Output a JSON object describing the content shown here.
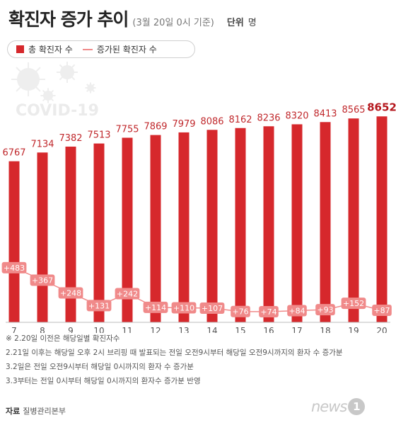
{
  "title": "확진자 증가 추이",
  "subtitle": "(3월 20일 0시 기준)",
  "unit_label": "단위",
  "unit_value": "명",
  "watermark": "COVID-19",
  "chart_data": {
    "type": "bar",
    "categories": [
      "7",
      "8",
      "9",
      "10",
      "11",
      "12",
      "13",
      "14",
      "15",
      "16",
      "17",
      "18",
      "19",
      "20"
    ],
    "series": [
      {
        "name": "총 확진자 수",
        "type": "bar",
        "values": [
          6767,
          7134,
          7382,
          7513,
          7755,
          7869,
          7979,
          8086,
          8162,
          8236,
          8320,
          8413,
          8565,
          8652
        ]
      },
      {
        "name": "증가된 확진자 수",
        "type": "line",
        "values": [
          483,
          367,
          248,
          131,
          242,
          114,
          110,
          107,
          76,
          74,
          84,
          93,
          152,
          87
        ]
      }
    ],
    "ylim": [
      0,
      9000
    ],
    "colors": {
      "bar": "#d6282c",
      "bar_label": "#c0282c",
      "last_label": "#b5171d",
      "line": "#f08a8a",
      "line_label_bg": "#f08a8a"
    }
  },
  "notes": [
    "※ 2.20일 이전은 해당일별 확진자수",
    "2.21일 이후는 해당일 오후 2시 브리핑 때 발표되는 전일 오전9시부터 해당일 오전9시까지의 환자 수 증가분",
    "3.2일은 전일 오전9시부터 해당일 0시까지의 환자 수 증가분",
    "3.3부터는 전일 0시부터 해당일 0시까지의 환자수 증가분 반영"
  ],
  "source_label": "자료",
  "source_value": "질병관리본부",
  "logo_text": "news",
  "logo_badge": "1"
}
